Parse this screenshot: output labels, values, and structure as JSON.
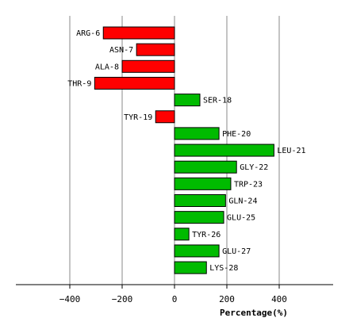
{
  "chart_data": {
    "type": "bar",
    "orientation": "horizontal",
    "title": "",
    "xlabel": "Percentage(%)",
    "ylabel": "",
    "xlim": [
      -600,
      600
    ],
    "xticks": [
      -400,
      -200,
      0,
      200,
      400
    ],
    "grid": "vertical",
    "legend": "none",
    "colors": {
      "negative": "#ff0000",
      "positive": "#00bb00",
      "outline": "#000000",
      "grid": "#888888"
    },
    "categories": [
      "ARG-6",
      "ASN-7",
      "ALA-8",
      "THR-9",
      "SER-18",
      "TYR-19",
      "PHE-20",
      "LEU-21",
      "GLY-22",
      "TRP-23",
      "GLN-24",
      "GLU-25",
      "TYR-26",
      "GLU-27",
      "LYS-28"
    ],
    "values": [
      -272,
      -145,
      -200,
      -305,
      97,
      -72,
      170,
      380,
      237,
      215,
      195,
      188,
      55,
      170,
      122
    ]
  }
}
